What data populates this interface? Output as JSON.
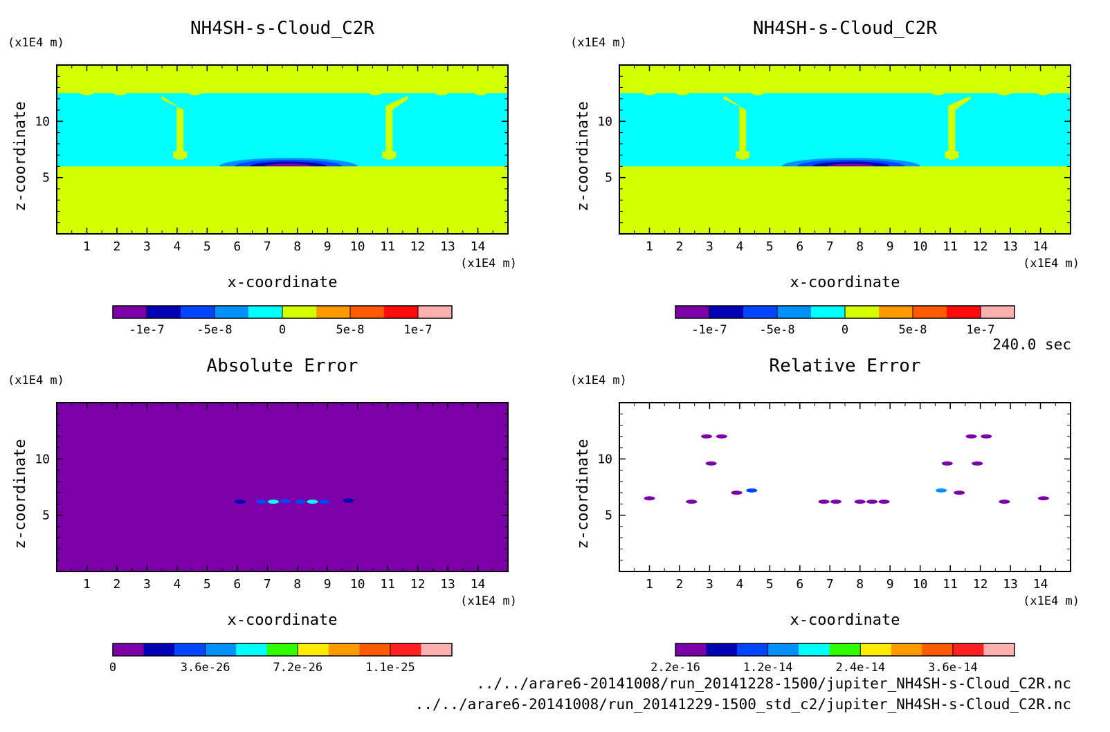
{
  "time_label": "240.0 sec",
  "files": [
    "../../arare6-20141008/run_20141228-1500/jupiter_NH4SH-s-Cloud_C2R.nc",
    "../../arare6-20141008/run_20141229-1500_std_c2/jupiter_NH4SH-s-Cloud_C2R.nc"
  ],
  "chart_data": [
    {
      "type": "heatmap",
      "title": "NH4SH-s-Cloud_C2R",
      "xlabel": "x-coordinate",
      "ylabel": "z-coordinate",
      "x_unit": "(x1E4 m)",
      "y_unit": "(x1E4 m)",
      "xlim": [
        0,
        15
      ],
      "ylim": [
        0,
        15
      ],
      "xticks": [
        "1",
        "2",
        "3",
        "4",
        "5",
        "6",
        "7",
        "8",
        "9",
        "10",
        "11",
        "12",
        "13",
        "14"
      ],
      "yticks": [
        "5",
        "10"
      ],
      "background": "#d4ff00",
      "regions": [
        {
          "kind": "band",
          "z": [
            6.0,
            12.5
          ],
          "color": "#00ffff"
        },
        {
          "kind": "column",
          "x": 4.1,
          "z": [
            6.6,
            12.0
          ],
          "color": "#d4ff00"
        },
        {
          "kind": "column",
          "x": 11.05,
          "z": [
            6.6,
            12.0
          ],
          "color": "#d4ff00"
        },
        {
          "kind": "lens",
          "cx": 7.7,
          "cz": 6.0,
          "rx": 2.3,
          "rz": 0.75,
          "colors": [
            "#0090ff",
            "#0046ff",
            "#0000b4",
            "#7b00a8"
          ]
        }
      ],
      "colorbar": {
        "colors": [
          "#7b00a8",
          "#0000b4",
          "#0046ff",
          "#0090ff",
          "#00ffff",
          "#d4ff00",
          "#ff9a00",
          "#ff5a00",
          "#ff0b0b",
          "#ffb0b0"
        ],
        "labels": [
          "-1e-7",
          "-5e-8",
          "0",
          "5e-8",
          "1e-7"
        ],
        "label_positions": [
          1,
          3,
          5,
          7,
          9
        ]
      }
    },
    {
      "type": "heatmap",
      "title": "NH4SH-s-Cloud_C2R",
      "xlabel": "x-coordinate",
      "ylabel": "z-coordinate",
      "x_unit": "(x1E4 m)",
      "y_unit": "(x1E4 m)",
      "xlim": [
        0,
        15
      ],
      "ylim": [
        0,
        15
      ],
      "xticks": [
        "1",
        "2",
        "3",
        "4",
        "5",
        "6",
        "7",
        "8",
        "9",
        "10",
        "11",
        "12",
        "13",
        "14"
      ],
      "yticks": [
        "5",
        "10"
      ],
      "background": "#d4ff00",
      "regions": [
        {
          "kind": "band",
          "z": [
            6.0,
            12.5
          ],
          "color": "#00ffff"
        },
        {
          "kind": "column",
          "x": 4.1,
          "z": [
            6.6,
            12.0
          ],
          "color": "#d4ff00"
        },
        {
          "kind": "column",
          "x": 11.05,
          "z": [
            6.6,
            12.0
          ],
          "color": "#d4ff00"
        },
        {
          "kind": "lens",
          "cx": 7.7,
          "cz": 6.0,
          "rx": 2.3,
          "rz": 0.75,
          "colors": [
            "#0090ff",
            "#0046ff",
            "#0000b4",
            "#7b00a8"
          ]
        }
      ],
      "colorbar": {
        "colors": [
          "#7b00a8",
          "#0000b4",
          "#0046ff",
          "#0090ff",
          "#00ffff",
          "#d4ff00",
          "#ff9a00",
          "#ff5a00",
          "#ff0b0b",
          "#ffb0b0"
        ],
        "labels": [
          "-1e-7",
          "-5e-8",
          "0",
          "5e-8",
          "1e-7"
        ],
        "label_positions": [
          1,
          3,
          5,
          7,
          9
        ]
      }
    },
    {
      "type": "heatmap",
      "title": "Absolute Error",
      "xlabel": "x-coordinate",
      "ylabel": "z-coordinate",
      "x_unit": "(x1E4 m)",
      "y_unit": "(x1E4 m)",
      "xlim": [
        0,
        15
      ],
      "ylim": [
        0,
        15
      ],
      "xticks": [
        "1",
        "2",
        "3",
        "4",
        "5",
        "6",
        "7",
        "8",
        "9",
        "10",
        "11",
        "12",
        "13",
        "14"
      ],
      "yticks": [
        "5",
        "10"
      ],
      "background": "#7b00a8",
      "regions": [
        {
          "kind": "spot",
          "x": 6.8,
          "z": 6.2,
          "color": "#0046ff"
        },
        {
          "kind": "spot",
          "x": 7.2,
          "z": 6.2,
          "color": "#00ffff"
        },
        {
          "kind": "spot",
          "x": 7.6,
          "z": 6.25,
          "color": "#0046ff"
        },
        {
          "kind": "spot",
          "x": 8.1,
          "z": 6.2,
          "color": "#0046ff"
        },
        {
          "kind": "spot",
          "x": 8.5,
          "z": 6.2,
          "color": "#00ffff"
        },
        {
          "kind": "spot",
          "x": 8.9,
          "z": 6.2,
          "color": "#0046ff"
        },
        {
          "kind": "spot",
          "x": 6.1,
          "z": 6.2,
          "color": "#0000b4"
        },
        {
          "kind": "spot",
          "x": 9.7,
          "z": 6.3,
          "color": "#0000b4"
        }
      ],
      "colorbar": {
        "colors": [
          "#7b00a8",
          "#0000b4",
          "#0046ff",
          "#0090ff",
          "#00ffff",
          "#30ff00",
          "#ffea00",
          "#ff9a00",
          "#ff5a00",
          "#ff2020",
          "#ffb0b0"
        ],
        "labels": [
          "0",
          "3.6e-26",
          "7.2e-26",
          "1.1e-25"
        ],
        "label_positions": [
          0,
          3,
          6,
          9
        ]
      }
    },
    {
      "type": "heatmap",
      "title": "Relative Error",
      "xlabel": "x-coordinate",
      "ylabel": "z-coordinate",
      "x_unit": "(x1E4 m)",
      "y_unit": "(x1E4 m)",
      "xlim": [
        0,
        15
      ],
      "ylim": [
        0,
        15
      ],
      "xticks": [
        "1",
        "2",
        "3",
        "4",
        "5",
        "6",
        "7",
        "8",
        "9",
        "10",
        "11",
        "12",
        "13",
        "14"
      ],
      "yticks": [
        "5",
        "10"
      ],
      "background": "#ffffff",
      "regions": [
        {
          "kind": "spot",
          "x": 3.4,
          "z": 12.0,
          "color": "#7b00a8"
        },
        {
          "kind": "spot",
          "x": 11.7,
          "z": 12.0,
          "color": "#7b00a8"
        },
        {
          "kind": "spot",
          "x": 2.9,
          "z": 12.0,
          "color": "#7b00a8"
        },
        {
          "kind": "spot",
          "x": 12.2,
          "z": 12.0,
          "color": "#7b00a8"
        },
        {
          "kind": "spot",
          "x": 10.9,
          "z": 9.6,
          "color": "#7b00a8"
        },
        {
          "kind": "spot",
          "x": 3.05,
          "z": 9.6,
          "color": "#7b00a8"
        },
        {
          "kind": "spot",
          "x": 11.9,
          "z": 9.6,
          "color": "#7b00a8"
        },
        {
          "kind": "spot",
          "x": 3.9,
          "z": 7.0,
          "color": "#7b00a8"
        },
        {
          "kind": "spot",
          "x": 4.4,
          "z": 7.2,
          "color": "#0046ff"
        },
        {
          "kind": "spot",
          "x": 11.3,
          "z": 7.0,
          "color": "#7b00a8"
        },
        {
          "kind": "spot",
          "x": 10.7,
          "z": 7.2,
          "color": "#0090ff"
        },
        {
          "kind": "spot",
          "x": 1.0,
          "z": 6.5,
          "color": "#7b00a8"
        },
        {
          "kind": "spot",
          "x": 14.1,
          "z": 6.5,
          "color": "#7b00a8"
        },
        {
          "kind": "spot",
          "x": 2.4,
          "z": 6.2,
          "color": "#7b00a8"
        },
        {
          "kind": "spot",
          "x": 12.8,
          "z": 6.2,
          "color": "#7b00a8"
        },
        {
          "kind": "spot",
          "x": 6.8,
          "z": 6.2,
          "color": "#7b00a8"
        },
        {
          "kind": "spot",
          "x": 7.2,
          "z": 6.2,
          "color": "#7b00a8"
        },
        {
          "kind": "spot",
          "x": 8.0,
          "z": 6.2,
          "color": "#7b00a8"
        },
        {
          "kind": "spot",
          "x": 8.4,
          "z": 6.2,
          "color": "#7b00a8"
        },
        {
          "kind": "spot",
          "x": 8.8,
          "z": 6.2,
          "color": "#7b00a8"
        }
      ],
      "colorbar": {
        "colors": [
          "#7b00a8",
          "#0000b4",
          "#0046ff",
          "#0090ff",
          "#00ffff",
          "#30ff00",
          "#ffea00",
          "#ff9a00",
          "#ff5a00",
          "#ff2020",
          "#ffb0b0"
        ],
        "labels": [
          "2.2e-16",
          "1.2e-14",
          "2.4e-14",
          "3.6e-14"
        ],
        "label_positions": [
          0,
          3,
          6,
          9
        ]
      }
    }
  ]
}
